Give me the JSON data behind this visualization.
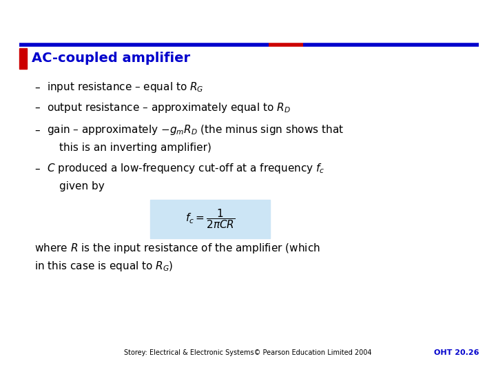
{
  "bg_color": "#ffffff",
  "title_color": "#0000cc",
  "bullet_color": "#cc0000",
  "text_color": "#000000",
  "header_bar_color1": "#0000cc",
  "header_bar_color2": "#cc0000",
  "footer_text": "Storey: Electrical & Electronic Systems© Pearson Education Limited 2004",
  "footer_ref": "OHT 20.26",
  "footer_ref_color": "#0000cc",
  "formula_bg": "#cce5f5",
  "title": "AC-coupled amplifier",
  "bullet_line1": "input resistance – equal to $R_G$",
  "bullet_line2": "output resistance – approximately equal to $R_D$",
  "bullet_line3a": "gain – approximately $-g_mR_D$ (the minus sign shows that",
  "bullet_line3b": "this is an inverting amplifier)",
  "bullet_line4a": "$C$ produced a low-frequency cut-off at a frequency $f_c$",
  "bullet_line4b": "given by",
  "bottom_text_line1": "where $R$ is the input resistance of the amplifier (which",
  "bottom_text_line2": "in this case is equal to $R_G$)",
  "title_fontsize": 14,
  "body_fontsize": 11,
  "footer_fontsize": 7,
  "footer_ref_fontsize": 8
}
